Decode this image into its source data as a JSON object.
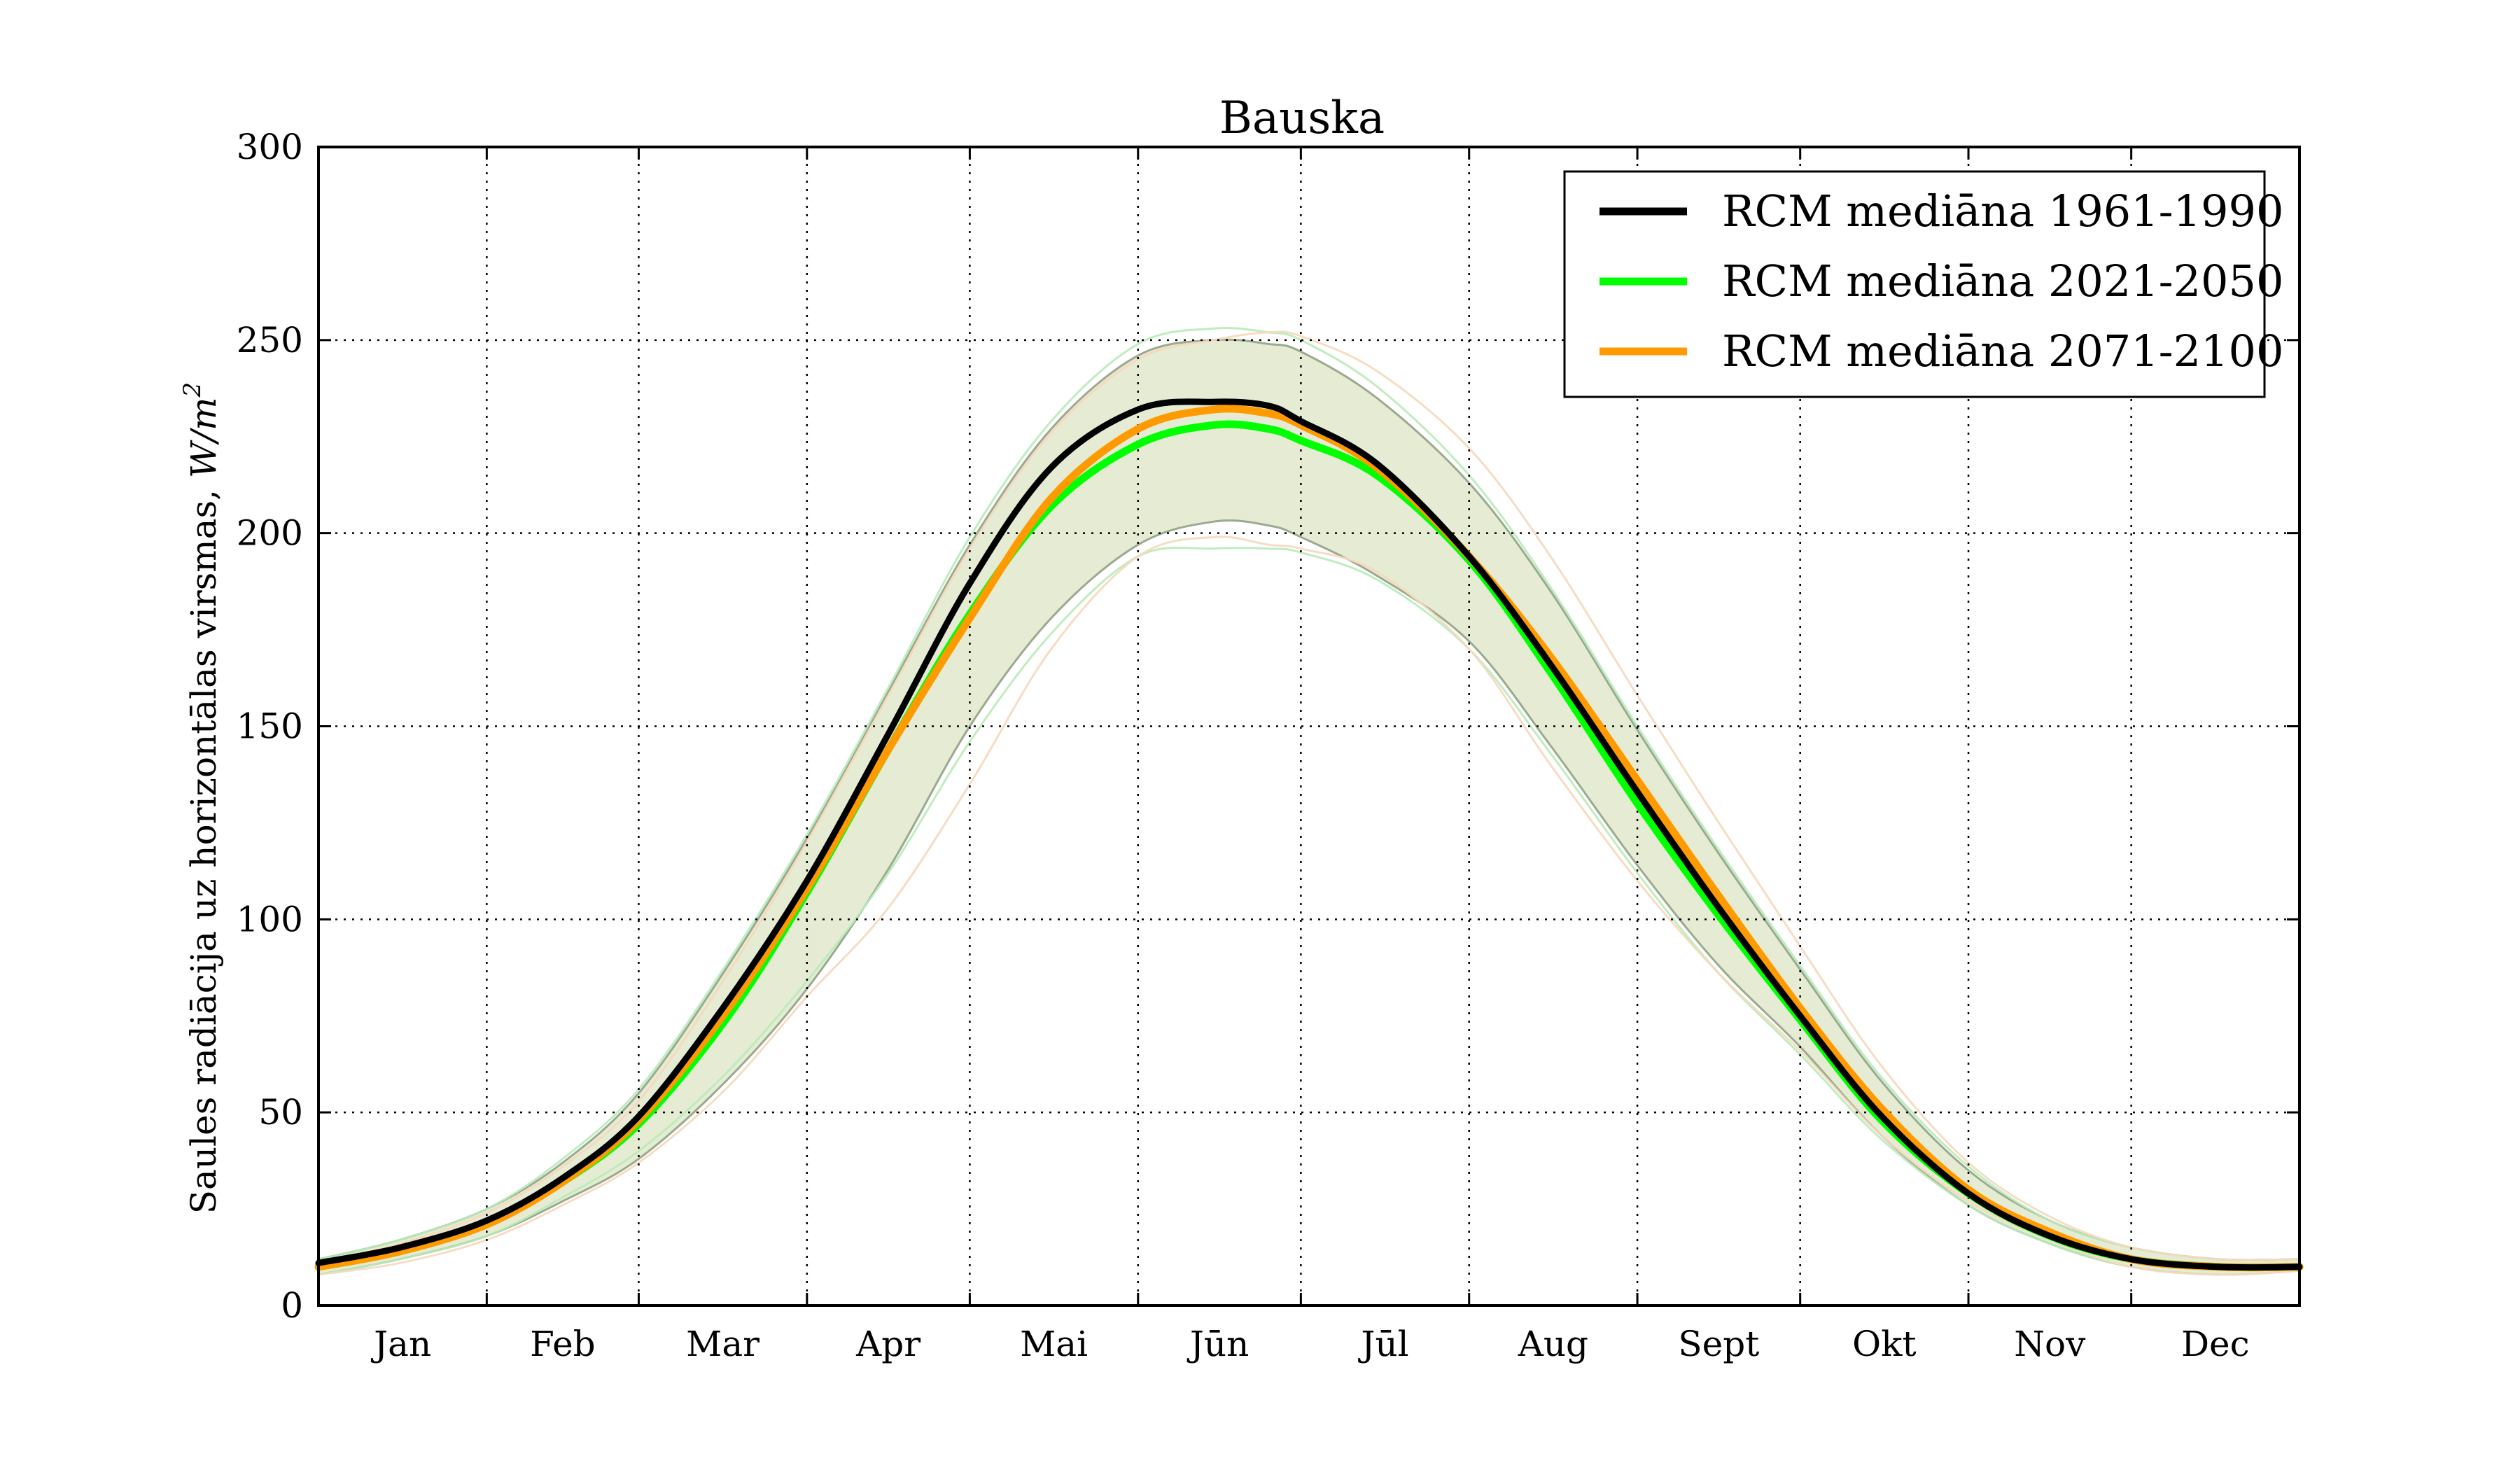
{
  "chart_data": {
    "type": "line",
    "title": "Bauska",
    "xlabel": "",
    "ylabel": "Saules radiācija uz horizontālas virsmas, ",
    "ylabel_unit": "W/m",
    "ylabel_unit_sup": "2",
    "ylim": [
      0,
      300
    ],
    "yticks": [
      0,
      50,
      100,
      150,
      200,
      250,
      300
    ],
    "xlim": [
      0,
      365
    ],
    "month_boundaries": [
      0,
      31,
      59,
      90,
      120,
      151,
      181,
      212,
      243,
      273,
      304,
      334,
      365
    ],
    "months": [
      "Jan",
      "Feb",
      "Mar",
      "Apr",
      "Mai",
      "Jūn",
      "Jūl",
      "Aug",
      "Sept",
      "Okt",
      "Nov",
      "Dec"
    ],
    "grid": true,
    "legend_position": "top-right",
    "x": [
      0,
      15,
      31,
      45,
      59,
      75,
      90,
      105,
      120,
      135,
      151,
      165,
      175,
      181,
      195,
      212,
      227,
      243,
      258,
      273,
      288,
      304,
      319,
      334,
      350,
      365
    ],
    "series": [
      {
        "name": "RCM mediāna 1961-1990",
        "color": "#000000",
        "values": [
          11,
          15,
          22,
          33,
          49,
          78,
          110,
          148,
          187,
          217,
          232,
          234,
          233,
          229,
          218,
          194,
          166,
          133,
          103,
          75,
          49,
          29,
          18,
          12,
          10,
          10
        ]
      },
      {
        "name": "RCM mediāna 2021-2050",
        "color": "#00ff00",
        "values": [
          10,
          14,
          21,
          32,
          47,
          74,
          107,
          144,
          179,
          207,
          223,
          228,
          227,
          224,
          215,
          193,
          164,
          130,
          101,
          74,
          48,
          29,
          18,
          12,
          10,
          10
        ]
      },
      {
        "name": "RCM mediāna 2071-2100",
        "color": "#ff9a00",
        "values": [
          10,
          14,
          21,
          32,
          48,
          76,
          108,
          144,
          178,
          209,
          227,
          232,
          231,
          228,
          217,
          194,
          168,
          136,
          106,
          77,
          51,
          30,
          19,
          12,
          10,
          10
        ]
      }
    ],
    "envelope": {
      "color": "#e6ecd4",
      "upper": [
        12,
        17,
        25,
        37,
        55,
        87,
        121,
        159,
        197,
        227,
        246,
        250,
        249,
        247,
        235,
        213,
        185,
        149,
        117,
        87,
        58,
        35,
        22,
        15,
        12,
        12
      ],
      "lower": [
        8,
        12,
        18,
        27,
        38,
        58,
        82,
        113,
        150,
        178,
        197,
        203,
        202,
        199,
        189,
        172,
        145,
        114,
        88,
        67,
        44,
        26,
        16,
        10,
        8,
        9
      ]
    },
    "members": [
      {
        "color": "#b8ebb8",
        "values": [
          12,
          17,
          25,
          38,
          56,
          88,
          122,
          160,
          199,
          229,
          249,
          253,
          252,
          250,
          238,
          215,
          186,
          150,
          118,
          88,
          59,
          36,
          22,
          15,
          12,
          12
        ]
      },
      {
        "color": "#f6d8bc",
        "values": [
          11,
          16,
          24,
          36,
          53,
          85,
          120,
          158,
          196,
          226,
          245,
          250,
          252,
          251,
          242,
          222,
          194,
          158,
          125,
          93,
          62,
          37,
          23,
          15,
          12,
          12
        ]
      },
      {
        "color": "#b8ebb8",
        "values": [
          8,
          12,
          18,
          28,
          40,
          60,
          84,
          112,
          146,
          174,
          194,
          196,
          196,
          195,
          188,
          170,
          143,
          112,
          86,
          65,
          43,
          26,
          16,
          10,
          8,
          9
        ]
      },
      {
        "color": "#f6d8bc",
        "values": [
          8,
          11,
          17,
          26,
          37,
          56,
          80,
          103,
          135,
          170,
          194,
          199,
          197,
          196,
          190,
          170,
          140,
          110,
          86,
          66,
          44,
          27,
          17,
          10,
          8,
          9
        ]
      }
    ]
  }
}
